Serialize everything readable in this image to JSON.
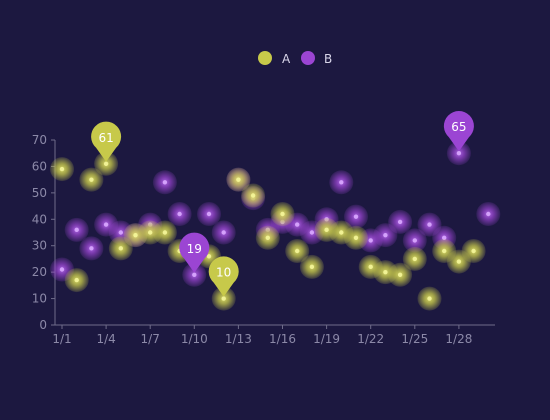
{
  "chart_data": {
    "type": "scatter",
    "title": "",
    "xlabel": "",
    "ylabel": "",
    "x": [
      "1/1",
      "1/2",
      "1/3",
      "1/4",
      "1/5",
      "1/6",
      "1/7",
      "1/8",
      "1/9",
      "1/10",
      "1/11",
      "1/12",
      "1/13",
      "1/14",
      "1/15",
      "1/16",
      "1/17",
      "1/18",
      "1/19",
      "1/20",
      "1/21",
      "1/22",
      "1/23",
      "1/24",
      "1/25",
      "1/26",
      "1/27",
      "1/28",
      "1/29",
      "1/30"
    ],
    "x_tick_labels": [
      "1/1",
      "1/4",
      "1/7",
      "1/10",
      "1/13",
      "1/16",
      "1/19",
      "1/22",
      "1/25",
      "1/28"
    ],
    "ylim": [
      0,
      70
    ],
    "y_ticks": [
      0,
      10,
      20,
      30,
      40,
      50,
      60,
      70
    ],
    "legend": {
      "placement": "top-center"
    },
    "series": [
      {
        "name": "A",
        "color": "#c7c94a",
        "values": [
          59,
          17,
          55,
          61,
          29,
          34,
          35,
          35,
          28,
          29,
          26,
          10,
          55,
          49,
          33,
          42,
          28,
          22,
          36,
          35,
          33,
          22,
          20,
          19,
          25,
          10,
          28,
          24,
          28,
          null
        ]
      },
      {
        "name": "B",
        "color": "#9b45d3",
        "values": [
          21,
          36,
          29,
          38,
          35,
          34,
          38,
          54,
          42,
          19,
          42,
          35,
          55,
          48,
          36,
          39,
          38,
          35,
          40,
          54,
          41,
          32,
          34,
          39,
          32,
          38,
          33,
          65,
          null,
          42
        ]
      }
    ],
    "markers": [
      {
        "series": "A",
        "x": "1/4",
        "value": 61,
        "label": "61"
      },
      {
        "series": "A",
        "x": "1/12",
        "value": 10,
        "label": "10"
      },
      {
        "series": "B",
        "x": "1/10",
        "value": 19,
        "label": "19"
      },
      {
        "series": "B",
        "x": "1/28",
        "value": 65,
        "label": "65"
      }
    ]
  }
}
